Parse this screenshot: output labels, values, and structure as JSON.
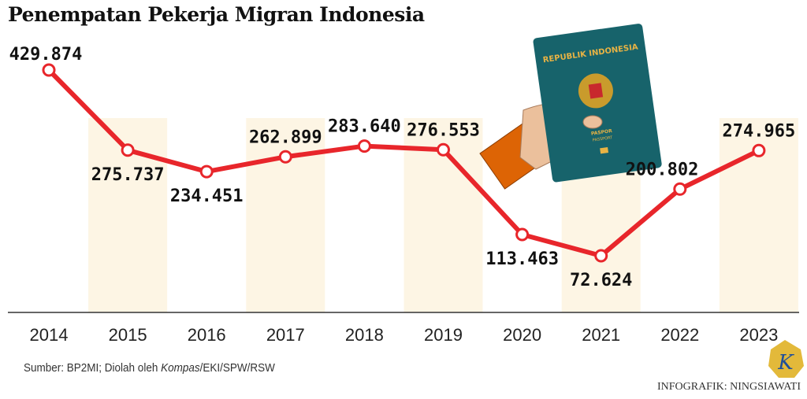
{
  "chart_data": {
    "type": "line",
    "title": "Penempatan Pekerja Migran Indonesia",
    "categories": [
      "2014",
      "2015",
      "2016",
      "2017",
      "2018",
      "2019",
      "2020",
      "2021",
      "2022",
      "2023"
    ],
    "values": [
      429874,
      275737,
      234451,
      262899,
      283640,
      276553,
      113463,
      72624,
      200802,
      274965
    ],
    "value_labels": [
      "429.874",
      "275.737",
      "234.451",
      "262.899",
      "283.640",
      "276.553",
      "113.463",
      "72.624",
      "200.802",
      "274.965"
    ],
    "xlabel": "",
    "ylabel": "",
    "ylim": [
      -36400,
      504000
    ],
    "grid": false,
    "line_color": "#e8262b",
    "stripe_color": "#fdf5e4"
  },
  "passport": {
    "country": "REPUBLIK INDONESIA",
    "label": "PASPOR",
    "label_en": "PASSPORT",
    "color": "#17636b"
  },
  "source": {
    "prefix": "Sumber: BP2MI; Diolah oleh ",
    "publication": "Kompas",
    "suffix": "/EKI/SPW/RSW"
  },
  "logo": {
    "letter": "K"
  },
  "credit": "INFOGRAFIK: NINGSIAWATI"
}
